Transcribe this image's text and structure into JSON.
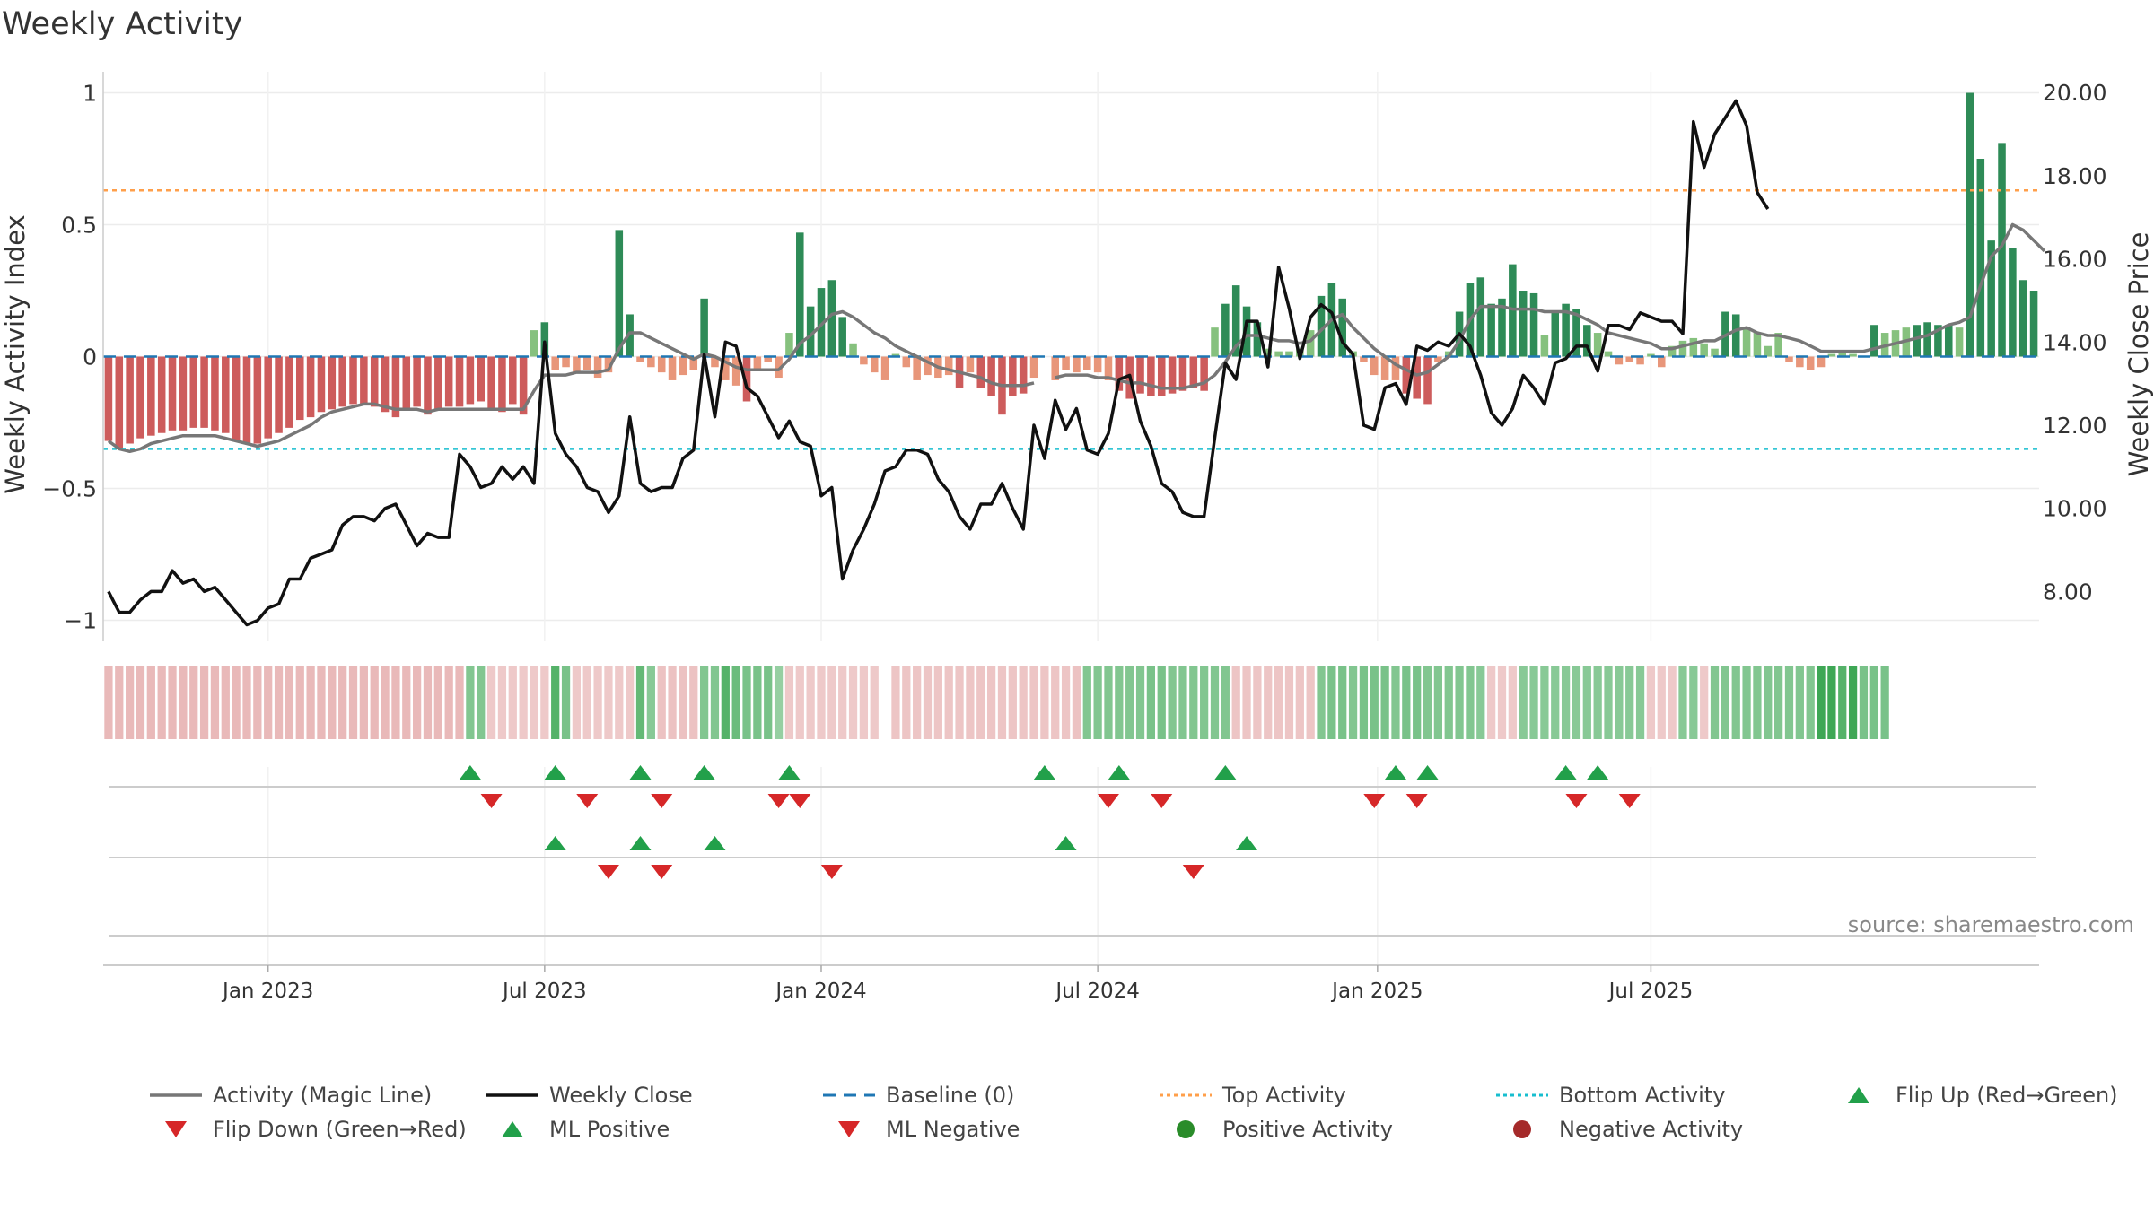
{
  "title": "Weekly Activity",
  "source": "source: sharemaestro.com",
  "colors": {
    "pos_strong": "#2e8b57",
    "pos_weak": "#86c17e",
    "neg_strong": "#cd5c5c",
    "neg_weak": "#e8967a",
    "magic": "#777777",
    "close": "#111111",
    "baseline": "#1f77b4",
    "top": "#ff9f4a",
    "bottom": "#17becf",
    "flip_up": "#22a04a",
    "flip_down": "#d62728",
    "pos_dot": "#2a8c2a",
    "neg_dot": "#a52a2a"
  },
  "chart_data": {
    "type": "bar+line",
    "title": "Weekly Activity",
    "ylabel_left": "Weekly Activity Index",
    "ylabel_right": "Weekly Close Price",
    "ylim_left": [
      -1.08,
      1.08
    ],
    "ylim_right": [
      6.8,
      20.5
    ],
    "yticks_left": [
      1,
      0.5,
      0,
      -0.5,
      -1
    ],
    "yticks_left_labels": [
      "1",
      "0.5",
      "0",
      "−0.5",
      "−1"
    ],
    "yticks_right": [
      20,
      18,
      16,
      14,
      12,
      10,
      8
    ],
    "yticks_right_labels": [
      "20.00",
      "18.00",
      "16.00",
      "14.00",
      "12.00",
      "10.00",
      "8.00"
    ],
    "x_start_week_offset": -15,
    "x_ticks": [
      {
        "label": "Jan 2023",
        "week": 0
      },
      {
        "label": "Jul 2023",
        "week": 26
      },
      {
        "label": "Jan 2024",
        "week": 52
      },
      {
        "label": "Jul 2024",
        "week": 78
      },
      {
        "label": "Jan 2025",
        "week": 104.3
      },
      {
        "label": "Jul 2025",
        "week": 130
      }
    ],
    "top_activity": 0.63,
    "bottom_activity": -0.35,
    "baseline": 0,
    "activity": [
      -0.32,
      -0.35,
      -0.33,
      -0.31,
      -0.3,
      -0.29,
      -0.28,
      -0.28,
      -0.27,
      -0.27,
      -0.28,
      -0.29,
      -0.32,
      -0.33,
      -0.33,
      -0.31,
      -0.29,
      -0.27,
      -0.24,
      -0.23,
      -0.21,
      -0.2,
      -0.19,
      -0.18,
      -0.18,
      -0.19,
      -0.21,
      -0.23,
      -0.2,
      -0.19,
      -0.22,
      -0.2,
      -0.19,
      -0.19,
      -0.18,
      -0.17,
      -0.2,
      -0.21,
      -0.18,
      -0.22,
      0.1,
      0.13,
      -0.05,
      -0.04,
      -0.06,
      -0.05,
      -0.08,
      -0.06,
      0.48,
      0.16,
      -0.02,
      -0.04,
      -0.06,
      -0.09,
      -0.07,
      -0.05,
      0.22,
      -0.04,
      -0.09,
      -0.11,
      -0.17,
      -0.05,
      -0.02,
      -0.08,
      0.09,
      0.47,
      0.19,
      0.26,
      0.29,
      0.15,
      0.05,
      -0.03,
      -0.06,
      -0.09,
      0.01,
      -0.04,
      -0.09,
      -0.07,
      -0.08,
      -0.07,
      -0.12,
      -0.06,
      -0.12,
      -0.15,
      -0.22,
      -0.15,
      -0.14,
      -0.08,
      null,
      -0.09,
      -0.05,
      -0.06,
      -0.05,
      -0.06,
      -0.09,
      -0.13,
      -0.16,
      -0.14,
      -0.15,
      -0.15,
      -0.14,
      -0.13,
      -0.12,
      -0.13,
      0.11,
      0.2,
      0.27,
      0.19,
      0.13,
      0.03,
      0.02,
      0.02,
      0.03,
      0.1,
      0.23,
      0.28,
      0.22,
      0.02,
      -0.02,
      -0.07,
      -0.09,
      -0.09,
      -0.14,
      -0.16,
      -0.18,
      -0.02,
      0.02,
      0.17,
      0.28,
      0.3,
      0.2,
      0.22,
      0.35,
      0.25,
      0.24,
      0.08,
      0.17,
      0.2,
      0.18,
      0.12,
      0.09,
      0.02,
      -0.03,
      -0.02,
      -0.03,
      0.01,
      -0.04,
      0.04,
      0.06,
      0.07,
      0.05,
      0.03,
      0.17,
      0.16,
      0.11,
      0.09,
      0.04,
      0.09,
      -0.02,
      -0.04,
      -0.05,
      -0.04,
      0.01,
      0.02,
      0.01,
      0.0,
      0.12,
      0.09,
      0.1,
      0.11,
      0.12,
      0.13,
      0.12,
      0.12,
      0.11,
      1.0,
      0.75,
      0.44,
      0.81,
      0.41,
      0.29,
      0.25
    ],
    "magic_line": [
      -0.32,
      -0.35,
      -0.36,
      -0.35,
      -0.33,
      -0.32,
      -0.31,
      -0.3,
      -0.3,
      -0.3,
      -0.3,
      -0.31,
      -0.32,
      -0.33,
      -0.34,
      -0.33,
      -0.32,
      -0.3,
      -0.28,
      -0.26,
      -0.23,
      -0.21,
      -0.2,
      -0.19,
      -0.18,
      -0.18,
      -0.19,
      -0.2,
      -0.2,
      -0.2,
      -0.21,
      -0.2,
      -0.2,
      -0.2,
      -0.2,
      -0.2,
      -0.2,
      -0.2,
      -0.2,
      -0.2,
      -0.13,
      -0.07,
      -0.07,
      -0.07,
      -0.06,
      -0.06,
      -0.06,
      -0.05,
      0.03,
      0.09,
      0.09,
      0.07,
      0.05,
      0.03,
      0.01,
      -0.01,
      0.01,
      0.0,
      -0.02,
      -0.04,
      -0.05,
      -0.05,
      -0.05,
      -0.05,
      -0.01,
      0.05,
      0.08,
      0.12,
      0.16,
      0.17,
      0.15,
      0.12,
      0.09,
      0.07,
      0.04,
      0.02,
      0.0,
      -0.02,
      -0.04,
      -0.05,
      -0.06,
      -0.07,
      -0.08,
      -0.1,
      -0.11,
      -0.11,
      -0.11,
      -0.1,
      null,
      -0.08,
      -0.07,
      -0.07,
      -0.07,
      -0.08,
      -0.08,
      -0.09,
      -0.1,
      -0.1,
      -0.11,
      -0.12,
      -0.12,
      -0.12,
      -0.11,
      -0.1,
      -0.07,
      -0.02,
      0.04,
      0.08,
      0.08,
      0.07,
      0.06,
      0.06,
      0.05,
      0.06,
      0.1,
      0.14,
      0.16,
      0.11,
      0.07,
      0.03,
      0.0,
      -0.03,
      -0.05,
      -0.07,
      -0.06,
      -0.03,
      0.0,
      0.06,
      0.14,
      0.19,
      0.19,
      0.19,
      0.18,
      0.18,
      0.18,
      0.17,
      0.17,
      0.17,
      0.16,
      0.14,
      0.12,
      0.09,
      0.08,
      0.07,
      0.06,
      0.05,
      0.03,
      0.03,
      0.04,
      0.05,
      0.06,
      0.06,
      0.08,
      0.1,
      0.11,
      0.09,
      0.08,
      0.08,
      0.07,
      0.06,
      0.04,
      0.02,
      0.02,
      0.02,
      0.02,
      0.02,
      0.03,
      0.04,
      0.05,
      0.06,
      0.07,
      0.08,
      0.1,
      0.12,
      0.13,
      0.15,
      0.27,
      0.38,
      0.42,
      0.5,
      0.48,
      0.44,
      0.4
    ],
    "weekly_close": [
      8.0,
      7.5,
      7.5,
      7.8,
      8.0,
      8.0,
      8.5,
      8.2,
      8.3,
      8.0,
      8.1,
      7.8,
      7.5,
      7.2,
      7.3,
      7.6,
      7.7,
      8.3,
      8.3,
      8.8,
      8.9,
      9.0,
      9.6,
      9.8,
      9.8,
      9.7,
      10.0,
      10.1,
      9.6,
      9.1,
      9.4,
      9.3,
      9.3,
      11.3,
      11.0,
      10.5,
      10.6,
      11.0,
      10.7,
      11.0,
      10.6,
      14.0,
      11.8,
      11.3,
      11.0,
      10.5,
      10.4,
      9.9,
      10.3,
      12.2,
      10.6,
      10.4,
      10.5,
      10.5,
      11.2,
      11.4,
      13.7,
      12.2,
      14.0,
      13.9,
      12.9,
      12.7,
      12.2,
      11.7,
      12.1,
      11.6,
      11.5,
      10.3,
      10.5,
      8.3,
      9.0,
      9.5,
      10.1,
      10.9,
      11.0,
      11.4,
      11.4,
      11.3,
      10.7,
      10.4,
      9.8,
      9.5,
      10.1,
      10.1,
      10.6,
      10.0,
      9.5,
      12.0,
      11.2,
      12.6,
      11.9,
      12.4,
      11.4,
      11.3,
      11.8,
      13.1,
      13.2,
      12.1,
      11.5,
      10.6,
      10.4,
      9.9,
      9.8,
      9.8,
      11.7,
      13.5,
      13.1,
      14.5,
      14.5,
      13.4,
      15.8,
      14.8,
      13.6,
      14.6,
      14.9,
      14.7,
      14.0,
      13.7,
      12.0,
      11.9,
      12.9,
      13.0,
      12.5,
      13.9,
      13.8,
      14.0,
      13.9,
      14.2,
      13.9,
      13.2,
      12.3,
      12.0,
      12.4,
      13.2,
      12.9,
      12.5,
      13.5,
      13.6,
      13.9,
      13.9,
      13.3,
      14.4,
      14.4,
      14.3,
      14.7,
      14.6,
      14.5,
      14.5,
      14.2,
      19.3,
      18.2,
      19.0,
      19.4,
      19.8,
      19.2,
      17.6,
      17.2
    ],
    "strip_intensity": [
      -0.55,
      -0.55,
      -0.55,
      -0.55,
      -0.55,
      -0.55,
      -0.55,
      -0.55,
      -0.55,
      -0.55,
      -0.55,
      -0.55,
      -0.55,
      -0.55,
      -0.55,
      -0.55,
      -0.55,
      -0.55,
      -0.55,
      -0.55,
      -0.55,
      -0.55,
      -0.55,
      -0.55,
      -0.55,
      -0.55,
      -0.55,
      -0.55,
      -0.55,
      -0.55,
      -0.55,
      -0.55,
      -0.55,
      -0.55,
      0.55,
      0.55,
      -0.35,
      -0.35,
      -0.35,
      -0.35,
      -0.35,
      -0.35,
      0.85,
      0.6,
      -0.35,
      -0.35,
      -0.35,
      -0.35,
      -0.35,
      -0.35,
      0.75,
      0.5,
      -0.45,
      -0.45,
      -0.45,
      -0.45,
      0.55,
      0.55,
      0.85,
      0.7,
      0.6,
      0.6,
      0.6,
      0.4,
      -0.35,
      -0.35,
      -0.35,
      -0.35,
      -0.35,
      -0.35,
      -0.35,
      -0.35,
      -0.35,
      null,
      -0.4,
      -0.4,
      -0.4,
      -0.4,
      -0.4,
      -0.4,
      -0.4,
      -0.4,
      -0.4,
      -0.4,
      -0.4,
      -0.4,
      -0.4,
      -0.4,
      -0.4,
      -0.4,
      -0.4,
      -0.45,
      0.55,
      0.55,
      0.55,
      0.55,
      0.55,
      0.55,
      0.6,
      0.6,
      0.55,
      0.55,
      0.55,
      0.55,
      0.55,
      0.55,
      -0.4,
      -0.4,
      -0.4,
      -0.4,
      -0.4,
      -0.4,
      -0.4,
      -0.4,
      0.55,
      0.6,
      0.6,
      0.55,
      0.6,
      0.6,
      0.6,
      0.55,
      0.6,
      0.6,
      0.55,
      0.55,
      0.55,
      0.55,
      0.55,
      0.5,
      -0.35,
      -0.35,
      -0.35,
      0.5,
      0.5,
      0.5,
      0.5,
      0.5,
      0.5,
      0.5,
      0.5,
      0.5,
      0.5,
      0.5,
      0.5,
      -0.35,
      -0.35,
      -0.35,
      0.5,
      0.5,
      -0.35,
      0.55,
      0.55,
      0.55,
      0.55,
      0.55,
      0.55,
      0.55,
      0.55,
      0.55,
      0.55,
      1.0,
      1.0,
      0.85,
      1.0,
      0.6,
      0.6,
      0.6
    ],
    "flip_up_weeks": [
      19,
      27,
      35,
      41,
      49,
      73,
      80,
      90,
      106,
      109,
      122,
      125
    ],
    "flip_down_weeks": [
      21,
      30,
      37,
      48,
      50,
      79,
      84,
      104,
      108,
      123,
      128
    ],
    "ml_positive_weeks": [
      27,
      35,
      42,
      75,
      92
    ],
    "ml_negative_weeks": [
      32,
      37,
      53,
      87
    ]
  },
  "legend": {
    "items": [
      {
        "key": "magic",
        "label": "Activity (Magic Line)"
      },
      {
        "key": "close",
        "label": "Weekly Close"
      },
      {
        "key": "baseline",
        "label": "Baseline (0)"
      },
      {
        "key": "top",
        "label": "Top Activity"
      },
      {
        "key": "bottom",
        "label": "Bottom Activity"
      },
      {
        "key": "flip_up",
        "label": "Flip Up (Red→Green)"
      },
      {
        "key": "flip_down",
        "label": "Flip Down (Green→Red)"
      },
      {
        "key": "ml_pos",
        "label": "ML Positive"
      },
      {
        "key": "ml_neg",
        "label": "ML Negative"
      },
      {
        "key": "pos_dot",
        "label": "Positive Activity"
      },
      {
        "key": "neg_dot",
        "label": "Negative Activity"
      }
    ]
  }
}
